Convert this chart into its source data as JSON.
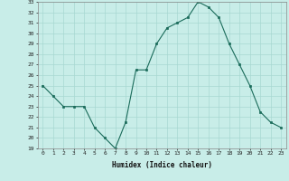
{
  "x": [
    0,
    1,
    2,
    3,
    4,
    5,
    6,
    7,
    8,
    9,
    10,
    11,
    12,
    13,
    14,
    15,
    16,
    17,
    18,
    19,
    20,
    21,
    22,
    23
  ],
  "y": [
    25,
    24,
    23,
    23,
    23,
    21,
    20,
    19,
    21.5,
    26.5,
    26.5,
    29,
    30.5,
    31,
    31.5,
    33,
    32.5,
    31.5,
    29,
    27,
    25,
    22.5,
    21.5,
    21
  ],
  "line_color": "#1a6b5a",
  "marker_color": "#1a6b5a",
  "bg_color": "#c8ede8",
  "grid_color": "#a8d8d2",
  "xlabel": "Humidex (Indice chaleur)",
  "xlabel_fontsize": 5.5,
  "tick_fontsize": 4.5,
  "ylim": [
    19,
    33
  ],
  "yticks": [
    19,
    20,
    21,
    22,
    23,
    24,
    25,
    26,
    27,
    28,
    29,
    30,
    31,
    32,
    33
  ],
  "xticks": [
    0,
    1,
    2,
    3,
    4,
    5,
    6,
    7,
    8,
    9,
    10,
    11,
    12,
    13,
    14,
    15,
    16,
    17,
    18,
    19,
    20,
    21,
    22,
    23
  ]
}
